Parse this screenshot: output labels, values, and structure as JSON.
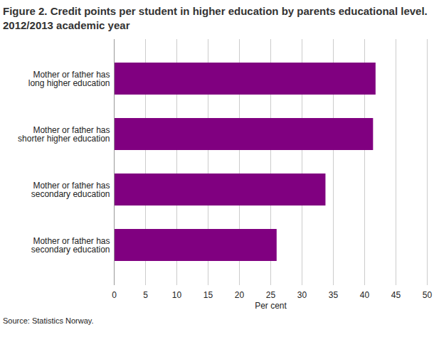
{
  "chart_data": {
    "type": "bar",
    "orientation": "horizontal",
    "title": "Figure 2. Credit points per student in higher education by parents educational level. 2012/2013 academic year",
    "categories": [
      "Mother or father has long higher education",
      "Mother or father has shorter higher education",
      "Mother or father has secondary education",
      "Mother or father has secondary education"
    ],
    "values": [
      41.8,
      41.4,
      33.8,
      26.0
    ],
    "color": "#800080",
    "x_label": "Per cent",
    "xlim": [
      0,
      50
    ],
    "xticks": [
      0,
      5,
      10,
      15,
      20,
      25,
      30,
      35,
      40,
      45,
      50
    ],
    "grid": true,
    "source": "Source: Statistics Norway."
  }
}
